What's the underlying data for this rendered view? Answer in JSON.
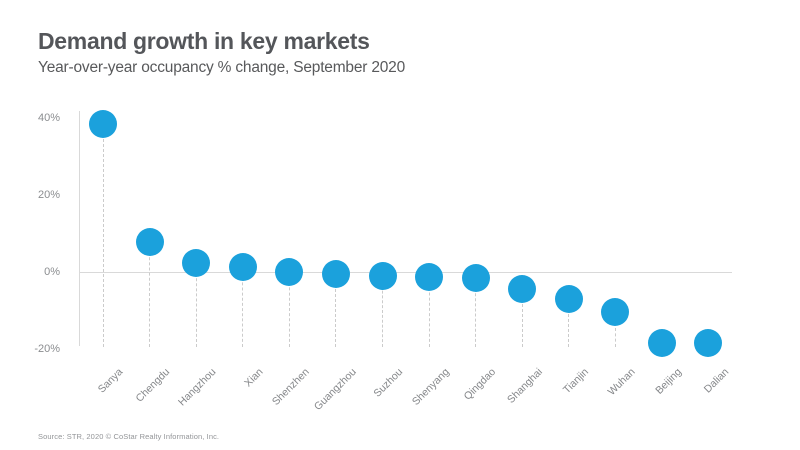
{
  "footer": {
    "source": "Source: STR, 2020 © CoStar Realty Information, Inc."
  },
  "chart_data": {
    "type": "scatter",
    "variant": "lollipop",
    "title": "Demand growth in key markets",
    "subtitle": "Year-over-year occupancy % change, September 2020",
    "categories": [
      "Sanya",
      "Chengdu",
      "Hangzhou",
      "Xian",
      "Shenzhen",
      "Guangzhou",
      "Suzhou",
      "Shenyang",
      "Qingdao",
      "Shanghai",
      "Tianjin",
      "Wuhan",
      "Beijing",
      "Dalian"
    ],
    "values": [
      38.5,
      8,
      2.5,
      1.5,
      0.2,
      -0.3,
      -0.8,
      -1.2,
      -1.5,
      -4.3,
      -6.9,
      -10.3,
      -18.4,
      -18.3
    ],
    "unit": "%",
    "xlabel": "",
    "ylabel": "",
    "ylim": [
      -20,
      40
    ],
    "yticks": [
      40,
      20,
      0,
      -20
    ],
    "ytick_labels": [
      "40%",
      "20%",
      "0%",
      "-20%"
    ],
    "grid": false,
    "zero_line": true,
    "legend": "none",
    "marker_color": "#1ba1dc",
    "stem_color": "#cbcbcb",
    "axis_color": "#d9d9d9",
    "tick_label_color": "#8b8d90",
    "category_label_color": "#85878a"
  }
}
